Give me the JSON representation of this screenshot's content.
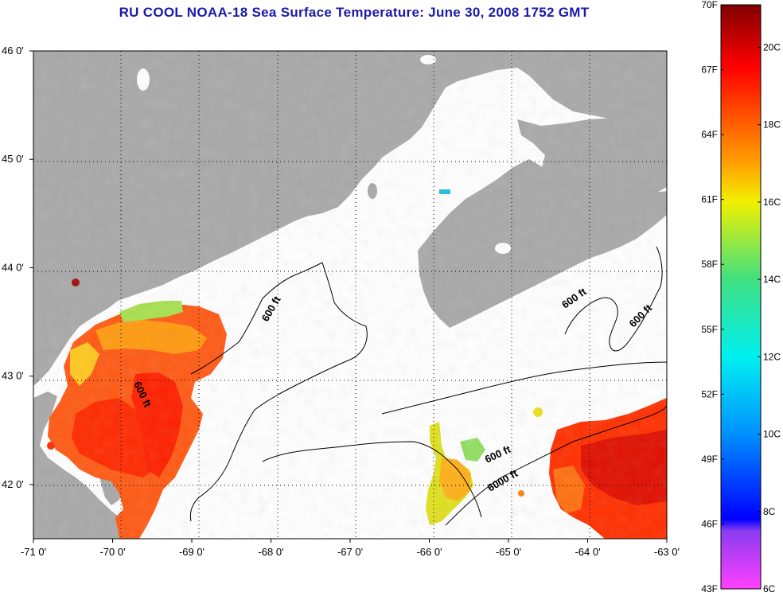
{
  "title": "RU COOL  NOAA-18  Sea Surface Temperature:  June 30, 2008 1752 GMT",
  "map": {
    "lon_range": [
      -71,
      -63
    ],
    "lat_range": [
      41.5,
      46
    ],
    "lon_ticks": [
      {
        "value": -71,
        "label": "-71 0'"
      },
      {
        "value": -70,
        "label": "-70 0'"
      },
      {
        "value": -69,
        "label": "-69 0'"
      },
      {
        "value": -68,
        "label": "-68 0'"
      },
      {
        "value": -67,
        "label": "-67 0'"
      },
      {
        "value": -66,
        "label": "-66 0'"
      },
      {
        "value": -65,
        "label": "-65 0'"
      },
      {
        "value": -64,
        "label": "-64 0'"
      },
      {
        "value": -63,
        "label": "-63 0'"
      }
    ],
    "lat_ticks": [
      {
        "value": 46,
        "label": "46 0'"
      },
      {
        "value": 45,
        "label": "45 0'"
      },
      {
        "value": 44,
        "label": "44 0'"
      },
      {
        "value": 43,
        "label": "43 0'"
      },
      {
        "value": 42,
        "label": "42 0'"
      }
    ],
    "contour_labels": [
      "600 ft",
      "600 ft",
      "600 ft",
      "600 ft",
      "600 ft",
      "6000 ft"
    ],
    "colors": {
      "land": "#a9a9a9",
      "ocean_no_data": "#ffffff",
      "contour": "#000000",
      "grid": "#000000"
    }
  },
  "colorbar": {
    "fahrenheit_labels": [
      "70F",
      "67F",
      "64F",
      "61F",
      "58F",
      "55F",
      "52F",
      "49F",
      "46F",
      "43F"
    ],
    "celsius_labels": [
      "20C",
      "18C",
      "16C",
      "14C",
      "12C",
      "10C",
      "8C",
      "6C"
    ],
    "range_f": [
      43,
      70
    ],
    "range_c": [
      6,
      21.1
    ],
    "gradient_stops": [
      {
        "c": 6,
        "color": "#ff40ff"
      },
      {
        "c": 7.5,
        "color": "#8a3cf0"
      },
      {
        "c": 7.8,
        "color": "#0000ff"
      },
      {
        "c": 10,
        "color": "#0090ff"
      },
      {
        "c": 12,
        "color": "#00f0f0"
      },
      {
        "c": 14,
        "color": "#40e080"
      },
      {
        "c": 16,
        "color": "#f0f000"
      },
      {
        "c": 17,
        "color": "#ffa000"
      },
      {
        "c": 18,
        "color": "#ff6000"
      },
      {
        "c": 19.5,
        "color": "#ff0000"
      },
      {
        "c": 21.1,
        "color": "#800000"
      }
    ]
  }
}
